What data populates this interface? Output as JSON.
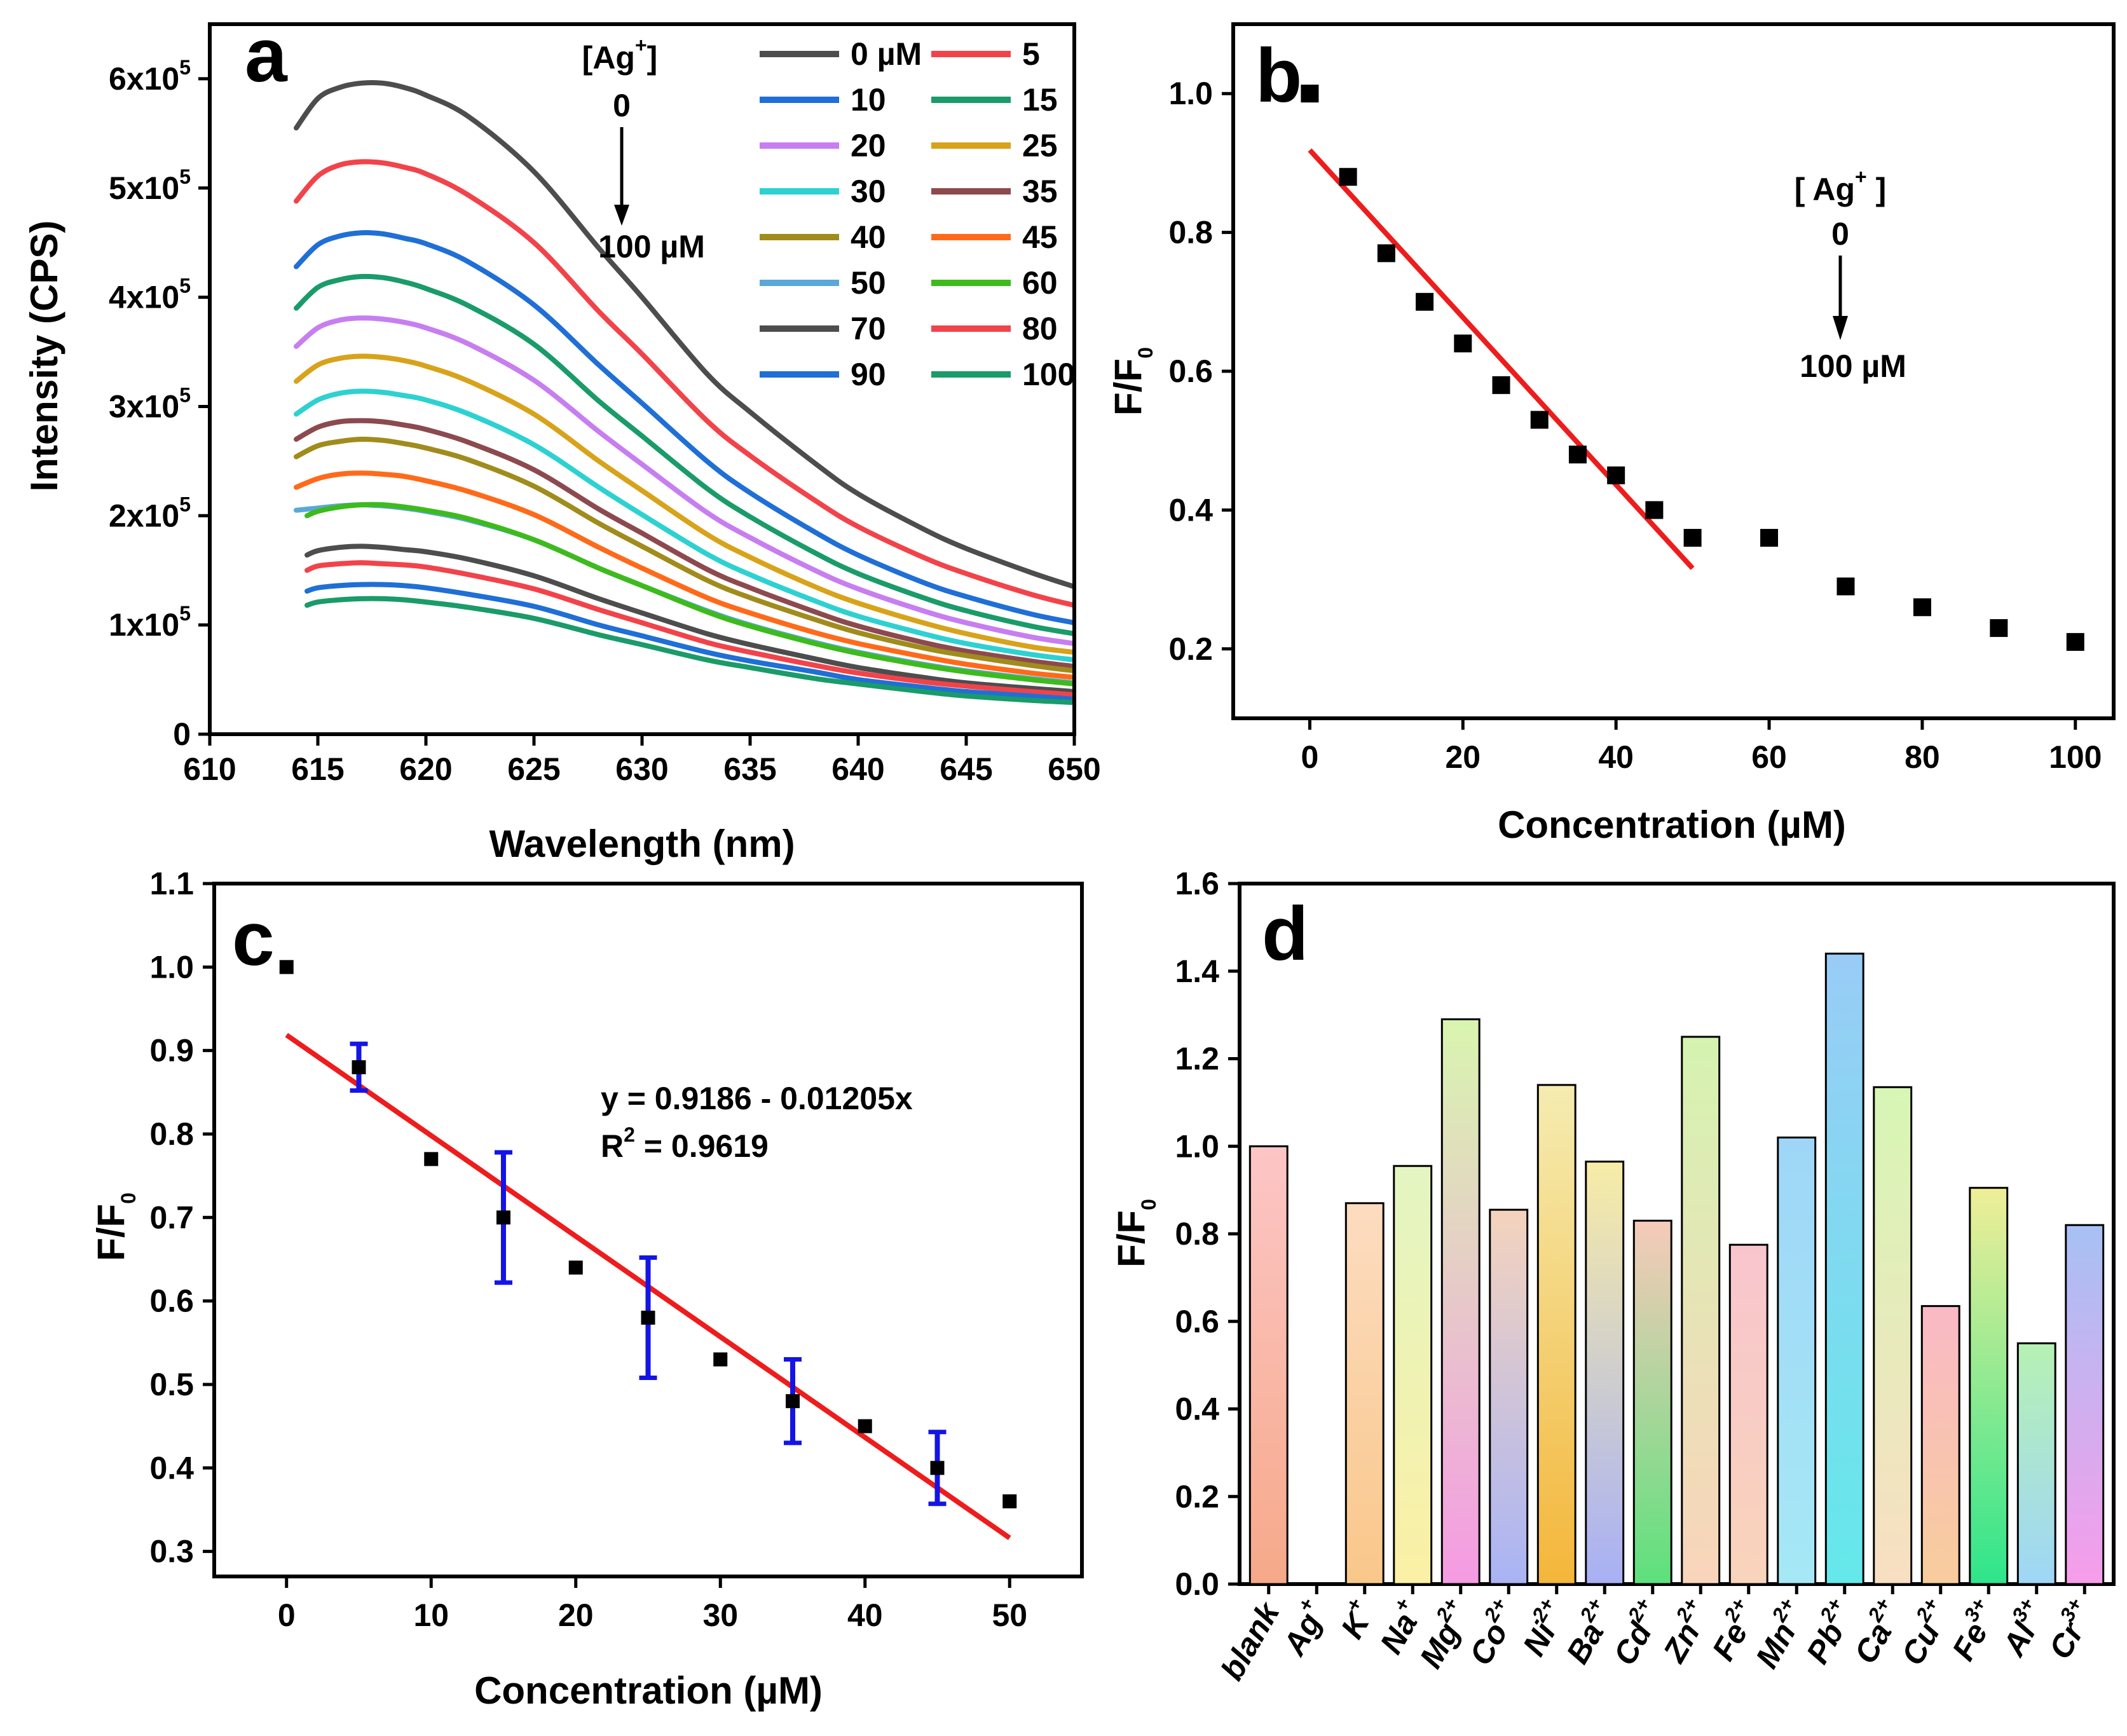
{
  "chart_data": [
    {
      "panel": "a",
      "type": "line",
      "xlabel": "Wavelength (nm)",
      "ylabel": "Intensity (CPS)",
      "xlim": [
        610,
        650
      ],
      "ylim": [
        0,
        650000
      ],
      "xticks": [
        "610",
        "615",
        "620",
        "625",
        "630",
        "635",
        "640",
        "645",
        "650"
      ],
      "yticks": [
        {
          "v": 0,
          "label": "0"
        },
        {
          "v": 100000,
          "m": "1"
        },
        {
          "v": 200000,
          "m": "2"
        },
        {
          "v": 300000,
          "m": "3"
        },
        {
          "v": 400000,
          "m": "4"
        },
        {
          "v": 500000,
          "m": "5"
        },
        {
          "v": 600000,
          "m": "6"
        }
      ],
      "ytick_base": "x10",
      "ytick_exp": "5",
      "annotation": {
        "label": "[Ag",
        "sup": "+",
        "close": "]",
        "start": "0",
        "end": "100 µM"
      },
      "curve_x": [
        614,
        615,
        616,
        617,
        618,
        619,
        620,
        622,
        625,
        628,
        630,
        633,
        635,
        638,
        640,
        643,
        645,
        648,
        650
      ],
      "series": [
        {
          "name": "0 µM",
          "color": "#4d4d4d",
          "start": 614,
          "values": [
            555000,
            582000,
            592000,
            596000,
            596000,
            592000,
            585000,
            565000,
            515000,
            445000,
            400000,
            330000,
            295000,
            248000,
            220000,
            188000,
            170000,
            148000,
            135000
          ]
        },
        {
          "name": "5",
          "color": "#f2434a",
          "start": 614,
          "values": [
            488000,
            511000,
            521000,
            524000,
            523000,
            519000,
            513000,
            493000,
            450000,
            387000,
            348000,
            287000,
            255000,
            214000,
            190000,
            162000,
            147000,
            128000,
            118000
          ]
        },
        {
          "name": "10",
          "color": "#1f6fd6",
          "start": 614,
          "values": [
            428000,
            448000,
            456000,
            459000,
            458000,
            454000,
            449000,
            432000,
            393000,
            338000,
            303000,
            250000,
            221000,
            185000,
            164000,
            139000,
            126000,
            110000,
            102000
          ]
        },
        {
          "name": "15",
          "color": "#1a9b6a",
          "start": 614,
          "values": [
            390000,
            409000,
            416000,
            419000,
            418000,
            414000,
            408000,
            392000,
            357000,
            305000,
            273000,
            225000,
            199000,
            166000,
            147000,
            125000,
            113000,
            99000,
            92000
          ]
        },
        {
          "name": "20",
          "color": "#c77ef0",
          "start": 614,
          "values": [
            355000,
            372000,
            379000,
            381000,
            380000,
            377000,
            372000,
            357000,
            324000,
            277000,
            247000,
            203000,
            180000,
            150000,
            133000,
            113000,
            102000,
            89000,
            83000
          ]
        },
        {
          "name": "25",
          "color": "#d8a31a",
          "start": 614,
          "values": [
            323000,
            338000,
            344000,
            346000,
            345000,
            342000,
            337000,
            323000,
            293000,
            250000,
            223000,
            183000,
            162000,
            135000,
            120000,
            102000,
            92000,
            80000,
            75000
          ]
        },
        {
          "name": "30",
          "color": "#2ed1d1",
          "start": 614,
          "values": [
            293000,
            306000,
            312000,
            314000,
            313000,
            310000,
            306000,
            293000,
            265000,
            226000,
            201000,
            165000,
            146000,
            122000,
            108000,
            92000,
            83000,
            73000,
            68000
          ]
        },
        {
          "name": "35",
          "color": "#8c4a4f",
          "start": 614,
          "values": [
            270000,
            281000,
            286000,
            287000,
            286000,
            283000,
            279000,
            267000,
            242000,
            206000,
            184000,
            151000,
            134000,
            112000,
            99000,
            84000,
            76000,
            67000,
            62000
          ]
        },
        {
          "name": "40",
          "color": "#a08c1c",
          "start": 614,
          "values": [
            254000,
            264000,
            268000,
            270000,
            269000,
            266000,
            262000,
            251000,
            227000,
            193000,
            172000,
            141000,
            125000,
            105000,
            93000,
            79000,
            72000,
            63000,
            58000
          ]
        },
        {
          "name": "45",
          "color": "#ff6a1a",
          "start": 614,
          "values": [
            226000,
            234000,
            238000,
            239000,
            238000,
            236000,
            232000,
            222000,
            201000,
            171000,
            152000,
            125000,
            111000,
            93000,
            83000,
            71000,
            64000,
            56000,
            52000
          ]
        },
        {
          "name": "50",
          "color": "#5aa8d8",
          "start": 614,
          "values": [
            205000,
            207000,
            209000,
            210000,
            209000,
            207000,
            204000,
            196000,
            178000,
            152000,
            136000,
            113000,
            100000,
            84000,
            75000,
            64000,
            58000,
            51000,
            47000
          ]
        },
        {
          "name": "60",
          "color": "#3dbb1c",
          "start": 614.5,
          "values": [
            200000,
            204000,
            208000,
            210000,
            210000,
            208000,
            205000,
            197000,
            178000,
            152000,
            136000,
            112000,
            99000,
            83000,
            74000,
            63000,
            57000,
            50000,
            46000
          ]
        },
        {
          "name": "70",
          "color": "#4d4d4d",
          "start": 614.5,
          "values": [
            164000,
            168000,
            171000,
            172000,
            171000,
            169000,
            167000,
            160000,
            145000,
            124000,
            111000,
            92000,
            82000,
            69000,
            61000,
            52000,
            47000,
            42000,
            39000
          ]
        },
        {
          "name": "80",
          "color": "#f2434a",
          "start": 614.5,
          "values": [
            150000,
            154000,
            156000,
            157000,
            156000,
            155000,
            153000,
            146000,
            133000,
            114000,
            102000,
            84000,
            75000,
            63000,
            56000,
            48000,
            44000,
            39000,
            36000
          ]
        },
        {
          "name": "90",
          "color": "#1f6fd6",
          "start": 614.5,
          "values": [
            131000,
            134000,
            136000,
            137000,
            137000,
            136000,
            134000,
            128000,
            117000,
            100000,
            90000,
            75000,
            67000,
            57000,
            50000,
            43000,
            39000,
            35000,
            32000
          ]
        },
        {
          "name": "100",
          "color": "#1a9b6a",
          "start": 614.5,
          "values": [
            118000,
            121000,
            123000,
            124000,
            124000,
            123000,
            121000,
            116000,
            106000,
            91000,
            82000,
            68000,
            61000,
            51000,
            46000,
            39000,
            35000,
            31000,
            29000
          ]
        }
      ]
    },
    {
      "panel": "b",
      "type": "scatter",
      "xlabel": "Concentration (µM)",
      "ylabel": "F/F",
      "ylabel_sub": "0",
      "xlim": [
        -10,
        105
      ],
      "ylim": [
        0.1,
        1.1
      ],
      "xticks": [
        "0",
        "20",
        "40",
        "60",
        "80",
        "100"
      ],
      "yticks": [
        "0.2",
        "0.4",
        "0.6",
        "0.8",
        "1.0"
      ],
      "x": [
        0,
        5,
        10,
        15,
        20,
        25,
        30,
        35,
        40,
        45,
        50,
        60,
        70,
        80,
        90,
        100
      ],
      "y": [
        1.0,
        0.88,
        0.77,
        0.7,
        0.64,
        0.58,
        0.53,
        0.48,
        0.45,
        0.4,
        0.36,
        0.36,
        0.29,
        0.26,
        0.23,
        0.21
      ],
      "fit": {
        "intercept": 0.9186,
        "slope": -0.01205,
        "x_range": [
          0,
          50
        ],
        "color": "#ee1c1c"
      },
      "annotation": {
        "label": "[ Ag",
        "sup": "+",
        "close": " ]",
        "start": "0",
        "end": "100 µM"
      }
    },
    {
      "panel": "c",
      "type": "scatter",
      "xlabel": "Concentration (µM)",
      "ylabel": "F/F",
      "ylabel_sub": "0",
      "xlim": [
        -5,
        55
      ],
      "ylim": [
        0.27,
        1.1
      ],
      "xticks": [
        "0",
        "10",
        "20",
        "30",
        "40",
        "50"
      ],
      "yticks": [
        "0.3",
        "0.4",
        "0.5",
        "0.6",
        "0.7",
        "0.8",
        "0.9",
        "1.0",
        "1.1"
      ],
      "x": [
        0,
        5,
        10,
        15,
        20,
        25,
        30,
        35,
        40,
        45,
        50
      ],
      "y": [
        1.0,
        0.88,
        0.77,
        0.7,
        0.64,
        0.58,
        0.53,
        0.48,
        0.45,
        0.4,
        0.36
      ],
      "errors": [
        0,
        0.028,
        0,
        0.078,
        0,
        0.072,
        0,
        0.05,
        0,
        0.043,
        0
      ],
      "fit": {
        "intercept": 0.9186,
        "slope": -0.01205,
        "x_range": [
          0,
          50
        ],
        "color": "#ee1c1c"
      },
      "error_color": "#1414e6",
      "equation": "y = 0.9186 - 0.01205x",
      "r2_prefix": "R",
      "r2_sup": "2",
      "r2_suffix": " = 0.9619"
    },
    {
      "panel": "d",
      "type": "bar",
      "ylabel": "F/F",
      "ylabel_sub": "0",
      "ylim": [
        0,
        1.6
      ],
      "yticks": [
        "0.0",
        "0.2",
        "0.4",
        "0.6",
        "0.8",
        "1.0",
        "1.2",
        "1.4",
        "1.6"
      ],
      "categories": [
        {
          "base": "blank",
          "sup": ""
        },
        {
          "base": "Ag",
          "sup": "+"
        },
        {
          "base": "K",
          "sup": "+"
        },
        {
          "base": "Na",
          "sup": "+"
        },
        {
          "base": "Mg",
          "sup": "2+"
        },
        {
          "base": "Co",
          "sup": "2+"
        },
        {
          "base": "Ni",
          "sup": "2+"
        },
        {
          "base": "Ba",
          "sup": "2+"
        },
        {
          "base": "Cd",
          "sup": "2+"
        },
        {
          "base": "Zn",
          "sup": "2+"
        },
        {
          "base": "Fe",
          "sup": "2+"
        },
        {
          "base": "Mn",
          "sup": "2+"
        },
        {
          "base": "Pb",
          "sup": "2+"
        },
        {
          "base": "Ca",
          "sup": "2+"
        },
        {
          "base": "Cu",
          "sup": "2+"
        },
        {
          "base": "Fe",
          "sup": "3+"
        },
        {
          "base": "Al",
          "sup": "3+"
        },
        {
          "base": "Cr",
          "sup": "3+"
        }
      ],
      "values": [
        1.0,
        0.0,
        0.87,
        0.955,
        1.29,
        0.855,
        1.14,
        0.965,
        0.83,
        1.25,
        0.775,
        1.02,
        1.44,
        1.135,
        0.635,
        0.905,
        0.55,
        0.82
      ],
      "colors": [
        [
          "#f6a989",
          "#fcc6c6"
        ],
        [
          "#f48fb1",
          "#f8bbd0"
        ],
        [
          "#f9c78a",
          "#fcdcc0"
        ],
        [
          "#fbf0a5",
          "#e3f5c2"
        ],
        [
          "#f59be3",
          "#d9f5b0"
        ],
        [
          "#a9b4f5",
          "#f5d3bd"
        ],
        [
          "#f4b63a",
          "#f5ecb1"
        ],
        [
          "#a8b0f5",
          "#f7eca6"
        ],
        [
          "#5de17c",
          "#f7caba"
        ],
        [
          "#f9d4bb",
          "#d5f3b1"
        ],
        [
          "#f9d4bb",
          "#f8c5cd"
        ],
        [
          "#a6e8f6",
          "#9fd6f7"
        ],
        [
          "#64e8ea",
          "#99ccf6"
        ],
        [
          "#f8dfc2",
          "#d7f6b5"
        ],
        [
          "#f8cd9c",
          "#f9b9c6"
        ],
        [
          "#2ee58a",
          "#f0ee98"
        ],
        [
          "#9fd6f7",
          "#b6f1b4"
        ],
        [
          "#f79dea",
          "#a7c1f4"
        ]
      ]
    }
  ]
}
